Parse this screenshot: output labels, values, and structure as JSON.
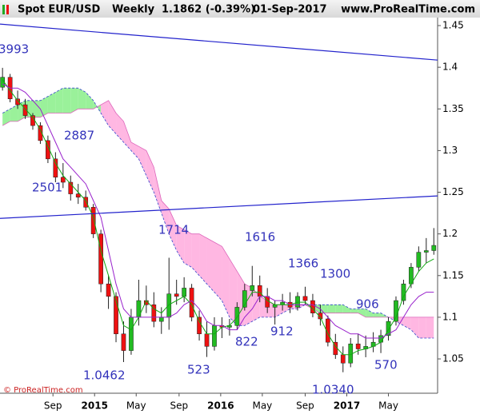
{
  "chart_data": {
    "type": "candlestick",
    "header": {
      "symbol": "Spot EUR/USD",
      "period": "Weekly",
      "quote": "1.1862 (-0.39%)",
      "date": "01-Sep-2017",
      "site": "www.ProRealTime.com"
    },
    "footer": "© ProRealTime.com",
    "xlim": [
      2014.25,
      2017.72
    ],
    "ylim": [
      1.0088,
      1.4596
    ],
    "yticks": [
      1.05,
      1.1,
      1.15,
      1.2,
      1.25,
      1.3,
      1.35,
      1.4,
      1.45
    ],
    "xticks": [
      {
        "value": 2014.67,
        "label": "Sep"
      },
      {
        "value": 2015,
        "label": "2015"
      },
      {
        "value": 2015.33,
        "label": "May"
      },
      {
        "value": 2015.67,
        "label": "Sep"
      },
      {
        "value": 2016,
        "label": "2016"
      },
      {
        "value": 2016.33,
        "label": "May"
      },
      {
        "value": 2016.67,
        "label": "Sep"
      },
      {
        "value": 2017,
        "label": "2017"
      },
      {
        "value": 2017.33,
        "label": "May"
      }
    ],
    "x": [
      2014.27,
      2014.33,
      2014.39,
      2014.45,
      2014.51,
      2014.57,
      2014.63,
      2014.69,
      2014.75,
      2014.81,
      2014.87,
      2014.93,
      2014.99,
      2015.05,
      2015.11,
      2015.17,
      2015.23,
      2015.29,
      2015.35,
      2015.41,
      2015.47,
      2015.53,
      2015.59,
      2015.65,
      2015.71,
      2015.77,
      2015.83,
      2015.89,
      2015.95,
      2016.01,
      2016.07,
      2016.13,
      2016.19,
      2016.25,
      2016.31,
      2016.37,
      2016.43,
      2016.49,
      2016.55,
      2016.61,
      2016.67,
      2016.73,
      2016.79,
      2016.85,
      2016.91,
      2016.97,
      2017.03,
      2017.09,
      2017.15,
      2017.21,
      2017.27,
      2017.33,
      2017.39,
      2017.45,
      2017.51,
      2017.57,
      2017.63,
      2017.69
    ],
    "open": [
      1.376,
      1.388,
      1.362,
      1.355,
      1.342,
      1.33,
      1.312,
      1.29,
      1.268,
      1.262,
      1.248,
      1.244,
      1.232,
      1.2,
      1.14,
      1.125,
      1.08,
      1.06,
      1.1,
      1.12,
      1.115,
      1.095,
      1.1,
      1.128,
      1.125,
      1.135,
      1.1,
      1.08,
      1.065,
      1.09,
      1.088,
      1.09,
      1.112,
      1.132,
      1.138,
      1.125,
      1.112,
      1.115,
      1.118,
      1.112,
      1.125,
      1.12,
      1.105,
      1.098,
      1.07,
      1.055,
      1.045,
      1.068,
      1.062,
      1.065,
      1.07,
      1.078,
      1.095,
      1.12,
      1.14,
      1.16,
      1.178,
      1.18
    ],
    "high": [
      1.3993,
      1.392,
      1.372,
      1.362,
      1.345,
      1.334,
      1.318,
      1.298,
      1.285,
      1.27,
      1.26,
      1.252,
      1.236,
      1.205,
      1.15,
      1.13,
      1.095,
      1.11,
      1.145,
      1.138,
      1.13,
      1.112,
      1.1714,
      1.145,
      1.148,
      1.14,
      1.108,
      1.095,
      1.1,
      1.1,
      1.098,
      1.118,
      1.14,
      1.1616,
      1.15,
      1.135,
      1.12,
      1.128,
      1.13,
      1.13,
      1.1366,
      1.128,
      1.115,
      1.102,
      1.08,
      1.065,
      1.075,
      1.08,
      1.078,
      1.082,
      1.085,
      1.1,
      1.125,
      1.145,
      1.165,
      1.185,
      1.195,
      1.207
    ],
    "low": [
      1.372,
      1.358,
      1.35,
      1.338,
      1.325,
      1.308,
      1.285,
      1.262,
      1.255,
      1.24,
      1.236,
      1.228,
      1.195,
      1.13,
      1.11,
      1.07,
      1.0462,
      1.055,
      1.09,
      1.105,
      1.088,
      1.08,
      1.085,
      1.115,
      1.118,
      1.095,
      1.072,
      1.0523,
      1.06,
      1.075,
      1.078,
      1.085,
      1.108,
      1.125,
      1.118,
      1.105,
      1.0912,
      1.108,
      1.105,
      1.108,
      1.115,
      1.1,
      1.09,
      1.065,
      1.05,
      1.034,
      1.04,
      1.055,
      1.052,
      1.058,
      1.057,
      1.072,
      1.09,
      1.115,
      1.135,
      1.155,
      1.165,
      1.175
    ],
    "close": [
      1.388,
      1.362,
      1.355,
      1.342,
      1.33,
      1.312,
      1.29,
      1.268,
      1.262,
      1.248,
      1.244,
      1.232,
      1.2,
      1.14,
      1.125,
      1.08,
      1.06,
      1.1,
      1.12,
      1.115,
      1.095,
      1.1,
      1.128,
      1.125,
      1.135,
      1.1,
      1.08,
      1.065,
      1.09,
      1.088,
      1.09,
      1.112,
      1.132,
      1.138,
      1.125,
      1.112,
      1.115,
      1.118,
      1.112,
      1.125,
      1.12,
      1.105,
      1.098,
      1.07,
      1.055,
      1.045,
      1.068,
      1.062,
      1.065,
      1.07,
      1.078,
      1.095,
      1.12,
      1.14,
      1.16,
      1.178,
      1.18,
      1.1862
    ],
    "up_color": "#22bb22",
    "down_color": "#ee1111",
    "cloud": {
      "up_color": "#88ee88",
      "down_color": "#ffaadd",
      "span_a": [
        1.345,
        1.35,
        1.355,
        1.36,
        1.36,
        1.36,
        1.365,
        1.37,
        1.375,
        1.375,
        1.375,
        1.37,
        1.36,
        1.345,
        1.33,
        1.32,
        1.31,
        1.3,
        1.29,
        1.27,
        1.25,
        1.225,
        1.2,
        1.18,
        1.165,
        1.16,
        1.15,
        1.14,
        1.13,
        1.12,
        1.1,
        1.09,
        1.09,
        1.095,
        1.1,
        1.1,
        1.1,
        1.105,
        1.11,
        1.11,
        1.115,
        1.115,
        1.115,
        1.115,
        1.115,
        1.115,
        1.11,
        1.11,
        1.11,
        1.105,
        1.105,
        1.1,
        1.095,
        1.09,
        1.085,
        1.075,
        1.075,
        1.075
      ],
      "span_b": [
        1.33,
        1.335,
        1.335,
        1.34,
        1.34,
        1.34,
        1.345,
        1.345,
        1.345,
        1.345,
        1.35,
        1.35,
        1.35,
        1.355,
        1.36,
        1.345,
        1.335,
        1.31,
        1.305,
        1.3,
        1.28,
        1.24,
        1.23,
        1.21,
        1.205,
        1.2,
        1.2,
        1.195,
        1.19,
        1.185,
        1.17,
        1.155,
        1.14,
        1.135,
        1.125,
        1.12,
        1.115,
        1.115,
        1.115,
        1.115,
        1.115,
        1.11,
        1.105,
        1.105,
        1.105,
        1.105,
        1.105,
        1.105,
        1.1,
        1.1,
        1.1,
        1.1,
        1.1,
        1.1,
        1.1,
        1.1,
        1.1,
        1.1
      ]
    },
    "overlays": [
      {
        "color": "#11aa11",
        "values": [
          1.385,
          1.372,
          1.36,
          1.35,
          1.34,
          1.325,
          1.305,
          1.285,
          1.27,
          1.26,
          1.25,
          1.24,
          1.22,
          1.18,
          1.15,
          1.12,
          1.09,
          1.085,
          1.1,
          1.12,
          1.11,
          1.105,
          1.115,
          1.12,
          1.125,
          1.115,
          1.095,
          1.08,
          1.08,
          1.088,
          1.09,
          1.1,
          1.115,
          1.13,
          1.13,
          1.12,
          1.115,
          1.115,
          1.115,
          1.118,
          1.118,
          1.11,
          1.1,
          1.08,
          1.065,
          1.055,
          1.055,
          1.06,
          1.062,
          1.065,
          1.07,
          1.085,
          1.1,
          1.125,
          1.14,
          1.155,
          1.165,
          1.17
        ]
      },
      {
        "color": "#9922cc",
        "values": [
          1.38,
          1.375,
          1.375,
          1.37,
          1.36,
          1.35,
          1.33,
          1.31,
          1.29,
          1.28,
          1.27,
          1.26,
          1.24,
          1.22,
          1.18,
          1.14,
          1.11,
          1.1,
          1.1,
          1.1,
          1.1,
          1.1,
          1.1,
          1.105,
          1.115,
          1.12,
          1.11,
          1.095,
          1.09,
          1.09,
          1.085,
          1.085,
          1.1,
          1.11,
          1.125,
          1.125,
          1.12,
          1.12,
          1.115,
          1.115,
          1.115,
          1.115,
          1.11,
          1.1,
          1.09,
          1.085,
          1.08,
          1.08,
          1.075,
          1.075,
          1.075,
          1.08,
          1.085,
          1.1,
          1.115,
          1.125,
          1.13,
          1.13
        ]
      }
    ],
    "trendlines": [
      {
        "color": "#2222cc",
        "x": [
          2014.25,
          2017.72
        ],
        "y": [
          1.4518,
          1.4086
        ]
      },
      {
        "color": "#2222cc",
        "x": [
          2014.25,
          2017.72
        ],
        "y": [
          1.2186,
          1.2456
        ]
      }
    ],
    "annotations": [
      "3993",
      "2887",
      "2501",
      "1714",
      "1616",
      "1366",
      "1300",
      "906",
      "912",
      "822",
      "523",
      "1.0462",
      "1.0340",
      "570"
    ]
  }
}
